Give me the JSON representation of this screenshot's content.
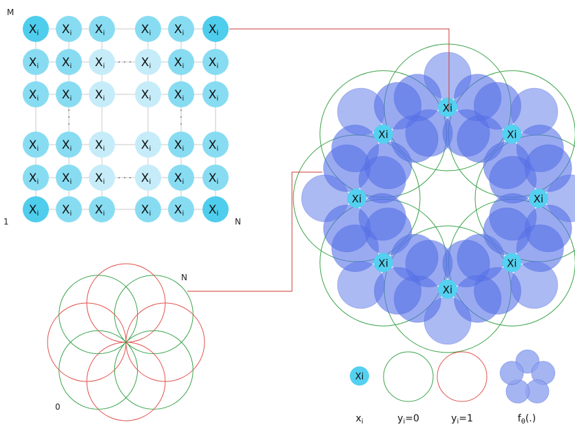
{
  "grid": {
    "label_M": "M",
    "label_1": "1",
    "label_N": "N",
    "cell_text": "X",
    "cell_sub": "i"
  },
  "bottom_figure": {
    "label_N": "N",
    "label_0": "0"
  },
  "ring": {
    "node_label": "Xi"
  },
  "legend": {
    "xi_icon_text": "Xi",
    "items": [
      {
        "main": "x",
        "sub": "i",
        "rest": ""
      },
      {
        "main": "y",
        "sub": "i",
        "rest": "=0"
      },
      {
        "main": "y",
        "sub": "i",
        "rest": "=1"
      },
      {
        "main": "f",
        "sub": "θ",
        "rest": "(.)"
      }
    ]
  },
  "colors": {
    "cell_dark": "#4fcdec",
    "cell_mid": "#88dcf2",
    "cell_light": "#c6ecf9",
    "node_fill": "#54d0f0",
    "lobe_fill": "#5671e8",
    "lobe_fill_light": "#8fa3ef",
    "green": "#3aa34a",
    "red": "#e0524c",
    "connector": "#cc3a33",
    "grid_line": "#c9c9c9"
  }
}
